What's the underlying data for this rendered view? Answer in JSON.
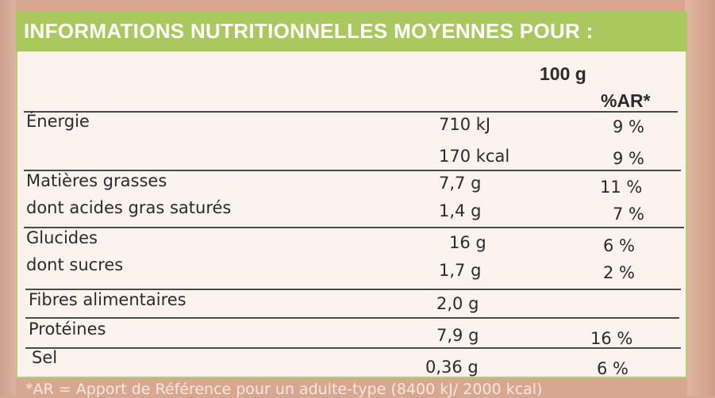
{
  "header": {
    "title": "INFORMATIONS NUTRITIONNELLES MOYENNES POUR :"
  },
  "columns": {
    "per_100g": "100 g",
    "ar": "%AR*"
  },
  "rows": [
    {
      "label": "Énergie",
      "value": "710 kJ",
      "ar": "9 %"
    },
    {
      "label": "",
      "value": "170 kcal",
      "ar": "9 %"
    },
    {
      "label": "Matières grasses",
      "value": "7,7 g",
      "ar": "11 %"
    },
    {
      "label": "dont acides gras saturés",
      "value": "1,4 g",
      "ar": "7 %"
    },
    {
      "label": "Glucides",
      "value": "16 g",
      "ar": "6 %"
    },
    {
      "label": "dont sucres",
      "value": "1,7 g",
      "ar": "2 %"
    },
    {
      "label": "Fibres alimentaires",
      "value": "2,0 g",
      "ar": ""
    },
    {
      "label": "Protéines",
      "value": "7,9 g",
      "ar": "16 %"
    },
    {
      "label": "Sel",
      "value": "0,36 g",
      "ar": "6 %"
    }
  ],
  "footnote": "*AR = Apport de Référence pour un adulte-type (8400 kJ/ 2000 kcal)",
  "colors": {
    "header_green": "#a9c95f",
    "panel_bg": "#fcf2ee",
    "packaging": "#d8a78f",
    "text": "#2b2b2d"
  }
}
